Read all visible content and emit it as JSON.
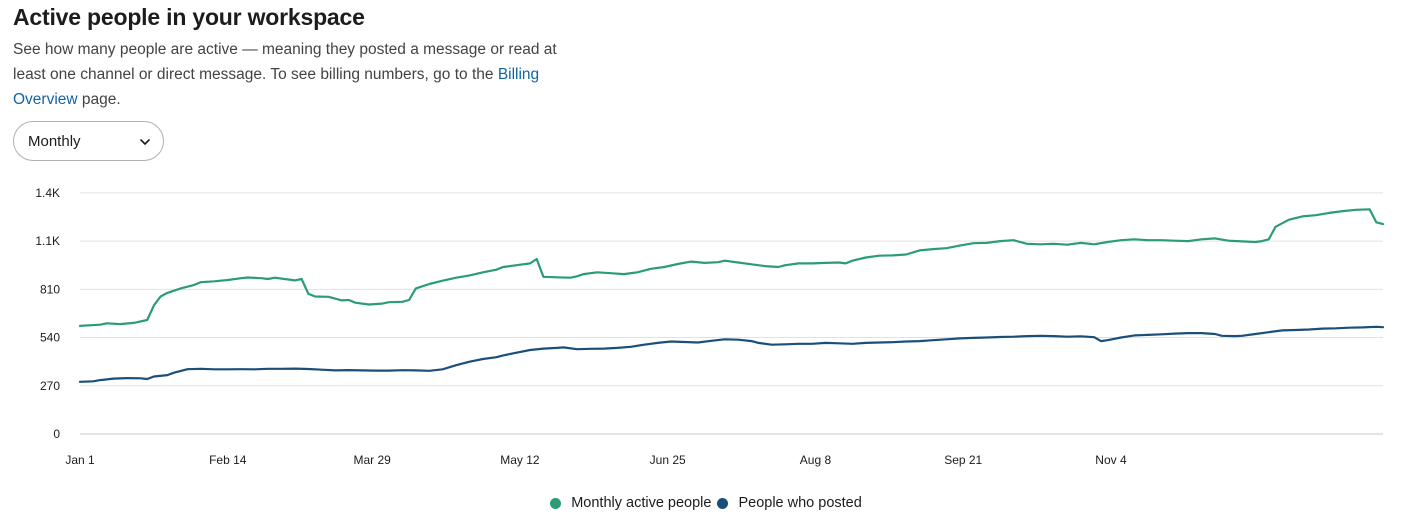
{
  "header": {
    "title": "Active people in your workspace",
    "desc_before": "See how many people are active — meaning they posted a message or read at least one channel or direct message. To see billing numbers, go to the ",
    "link_text": "Billing Overview",
    "desc_after": " page."
  },
  "period_select": {
    "value": "Monthly",
    "icon": "chevron-down-icon"
  },
  "legend": {
    "items": [
      {
        "label": "Monthly active people",
        "color": "#2a9d74"
      },
      {
        "label": "People who posted",
        "color": "#1b4f7a"
      }
    ]
  },
  "chart_data": {
    "type": "line",
    "xlabel": "",
    "ylabel": "",
    "ylim": [
      0,
      1450
    ],
    "y_ticks": [
      {
        "value": 0,
        "label": "0"
      },
      {
        "value": 270,
        "label": "270"
      },
      {
        "value": 540,
        "label": "540"
      },
      {
        "value": 810,
        "label": "810"
      },
      {
        "value": 1080,
        "label": "1.1K"
      },
      {
        "value": 1350,
        "label": "1.4K"
      }
    ],
    "x_domain": [
      "Jan 1",
      "Dec 31"
    ],
    "x_ticks": [
      {
        "label": "Jan 1",
        "day": 0
      },
      {
        "label": "Feb 14",
        "day": 44
      },
      {
        "label": "Mar 29",
        "day": 87
      },
      {
        "label": "May 12",
        "day": 131
      },
      {
        "label": "Jun 25",
        "day": 175
      },
      {
        "label": "Aug 8",
        "day": 219
      },
      {
        "label": "Sep 21",
        "day": 263
      },
      {
        "label": "Nov 4",
        "day": 307
      }
    ],
    "grid": true,
    "legend_position": "bottom-center",
    "series": [
      {
        "name": "Monthly active people",
        "color": "#2a9d74",
        "points": [
          [
            0,
            605
          ],
          [
            6,
            612
          ],
          [
            8,
            620
          ],
          [
            12,
            615
          ],
          [
            16,
            622
          ],
          [
            20,
            638
          ],
          [
            22,
            720
          ],
          [
            24,
            770
          ],
          [
            26,
            790
          ],
          [
            30,
            815
          ],
          [
            34,
            835
          ],
          [
            36,
            850
          ],
          [
            40,
            855
          ],
          [
            44,
            862
          ],
          [
            48,
            872
          ],
          [
            50,
            876
          ],
          [
            54,
            872
          ],
          [
            56,
            868
          ],
          [
            58,
            875
          ],
          [
            62,
            865
          ],
          [
            64,
            860
          ],
          [
            66,
            868
          ],
          [
            68,
            785
          ],
          [
            70,
            770
          ],
          [
            74,
            768
          ],
          [
            78,
            748
          ],
          [
            80,
            750
          ],
          [
            82,
            735
          ],
          [
            86,
            725
          ],
          [
            90,
            730
          ],
          [
            92,
            738
          ],
          [
            96,
            740
          ],
          [
            98,
            750
          ],
          [
            100,
            815
          ],
          [
            104,
            840
          ],
          [
            108,
            858
          ],
          [
            112,
            875
          ],
          [
            116,
            888
          ],
          [
            120,
            905
          ],
          [
            124,
            920
          ],
          [
            126,
            935
          ],
          [
            130,
            945
          ],
          [
            134,
            955
          ],
          [
            136,
            980
          ],
          [
            138,
            880
          ],
          [
            142,
            877
          ],
          [
            146,
            875
          ],
          [
            148,
            883
          ],
          [
            150,
            895
          ],
          [
            154,
            905
          ],
          [
            158,
            900
          ],
          [
            162,
            895
          ],
          [
            166,
            905
          ],
          [
            170,
            925
          ],
          [
            174,
            935
          ],
          [
            178,
            952
          ],
          [
            182,
            965
          ],
          [
            186,
            958
          ],
          [
            190,
            962
          ],
          [
            192,
            970
          ],
          [
            196,
            960
          ],
          [
            200,
            950
          ],
          [
            204,
            940
          ],
          [
            208,
            935
          ],
          [
            210,
            945
          ],
          [
            214,
            955
          ],
          [
            218,
            955
          ],
          [
            222,
            958
          ],
          [
            226,
            960
          ],
          [
            228,
            955
          ],
          [
            230,
            970
          ],
          [
            234,
            988
          ],
          [
            238,
            998
          ],
          [
            242,
            1000
          ],
          [
            246,
            1005
          ],
          [
            250,
            1028
          ],
          [
            254,
            1035
          ],
          [
            258,
            1040
          ],
          [
            262,
            1055
          ],
          [
            266,
            1068
          ],
          [
            270,
            1070
          ],
          [
            274,
            1080
          ],
          [
            278,
            1085
          ],
          [
            282,
            1065
          ],
          [
            286,
            1062
          ],
          [
            290,
            1065
          ],
          [
            294,
            1060
          ],
          [
            298,
            1070
          ],
          [
            302,
            1062
          ],
          [
            306,
            1075
          ],
          [
            310,
            1085
          ],
          [
            314,
            1090
          ],
          [
            318,
            1085
          ],
          [
            322,
            1085
          ],
          [
            326,
            1082
          ],
          [
            330,
            1080
          ],
          [
            334,
            1090
          ],
          [
            338,
            1095
          ],
          [
            342,
            1082
          ],
          [
            346,
            1078
          ],
          [
            350,
            1075
          ],
          [
            352,
            1080
          ],
          [
            354,
            1090
          ],
          [
            356,
            1160
          ],
          [
            360,
            1200
          ],
          [
            364,
            1218
          ],
          [
            368,
            1225
          ],
          [
            372,
            1238
          ],
          [
            376,
            1248
          ],
          [
            380,
            1255
          ],
          [
            384,
            1258
          ],
          [
            386,
            1185
          ],
          [
            388,
            1175
          ]
        ]
      },
      {
        "name": "People who posted",
        "color": "#1b4f7a",
        "points": [
          [
            0,
            292
          ],
          [
            4,
            295
          ],
          [
            6,
            302
          ],
          [
            10,
            310
          ],
          [
            14,
            313
          ],
          [
            18,
            312
          ],
          [
            20,
            308
          ],
          [
            22,
            322
          ],
          [
            26,
            330
          ],
          [
            28,
            343
          ],
          [
            32,
            363
          ],
          [
            36,
            365
          ],
          [
            40,
            362
          ],
          [
            44,
            362
          ],
          [
            48,
            363
          ],
          [
            52,
            362
          ],
          [
            56,
            365
          ],
          [
            60,
            365
          ],
          [
            64,
            366
          ],
          [
            68,
            364
          ],
          [
            72,
            360
          ],
          [
            76,
            356
          ],
          [
            80,
            358
          ],
          [
            84,
            356
          ],
          [
            88,
            355
          ],
          [
            92,
            355
          ],
          [
            96,
            357
          ],
          [
            100,
            356
          ],
          [
            104,
            354
          ],
          [
            108,
            362
          ],
          [
            112,
            385
          ],
          [
            116,
            405
          ],
          [
            120,
            420
          ],
          [
            124,
            430
          ],
          [
            126,
            440
          ],
          [
            130,
            455
          ],
          [
            134,
            470
          ],
          [
            138,
            478
          ],
          [
            142,
            482
          ],
          [
            144,
            485
          ],
          [
            148,
            475
          ],
          [
            152,
            477
          ],
          [
            156,
            478
          ],
          [
            160,
            482
          ],
          [
            164,
            488
          ],
          [
            168,
            500
          ],
          [
            172,
            510
          ],
          [
            176,
            518
          ],
          [
            180,
            515
          ],
          [
            184,
            512
          ],
          [
            188,
            522
          ],
          [
            192,
            530
          ],
          [
            196,
            528
          ],
          [
            200,
            520
          ],
          [
            202,
            510
          ],
          [
            206,
            500
          ],
          [
            210,
            502
          ],
          [
            214,
            505
          ],
          [
            218,
            505
          ],
          [
            222,
            510
          ],
          [
            226,
            508
          ],
          [
            230,
            505
          ],
          [
            234,
            510
          ],
          [
            238,
            512
          ],
          [
            242,
            514
          ],
          [
            246,
            518
          ],
          [
            250,
            520
          ],
          [
            254,
            525
          ],
          [
            258,
            530
          ],
          [
            262,
            535
          ],
          [
            266,
            538
          ],
          [
            270,
            540
          ],
          [
            274,
            543
          ],
          [
            278,
            545
          ],
          [
            282,
            548
          ],
          [
            286,
            550
          ],
          [
            290,
            548
          ],
          [
            294,
            545
          ],
          [
            298,
            547
          ],
          [
            302,
            542
          ],
          [
            304,
            520
          ],
          [
            306,
            525
          ],
          [
            310,
            540
          ],
          [
            314,
            552
          ],
          [
            318,
            555
          ],
          [
            322,
            558
          ],
          [
            326,
            562
          ],
          [
            330,
            565
          ],
          [
            334,
            565
          ],
          [
            338,
            560
          ],
          [
            340,
            550
          ],
          [
            344,
            548
          ],
          [
            346,
            550
          ],
          [
            350,
            560
          ],
          [
            354,
            570
          ],
          [
            358,
            580
          ],
          [
            362,
            582
          ],
          [
            366,
            585
          ],
          [
            370,
            590
          ],
          [
            374,
            592
          ],
          [
            378,
            595
          ],
          [
            382,
            597
          ],
          [
            386,
            600
          ],
          [
            388,
            598
          ]
        ]
      }
    ]
  }
}
